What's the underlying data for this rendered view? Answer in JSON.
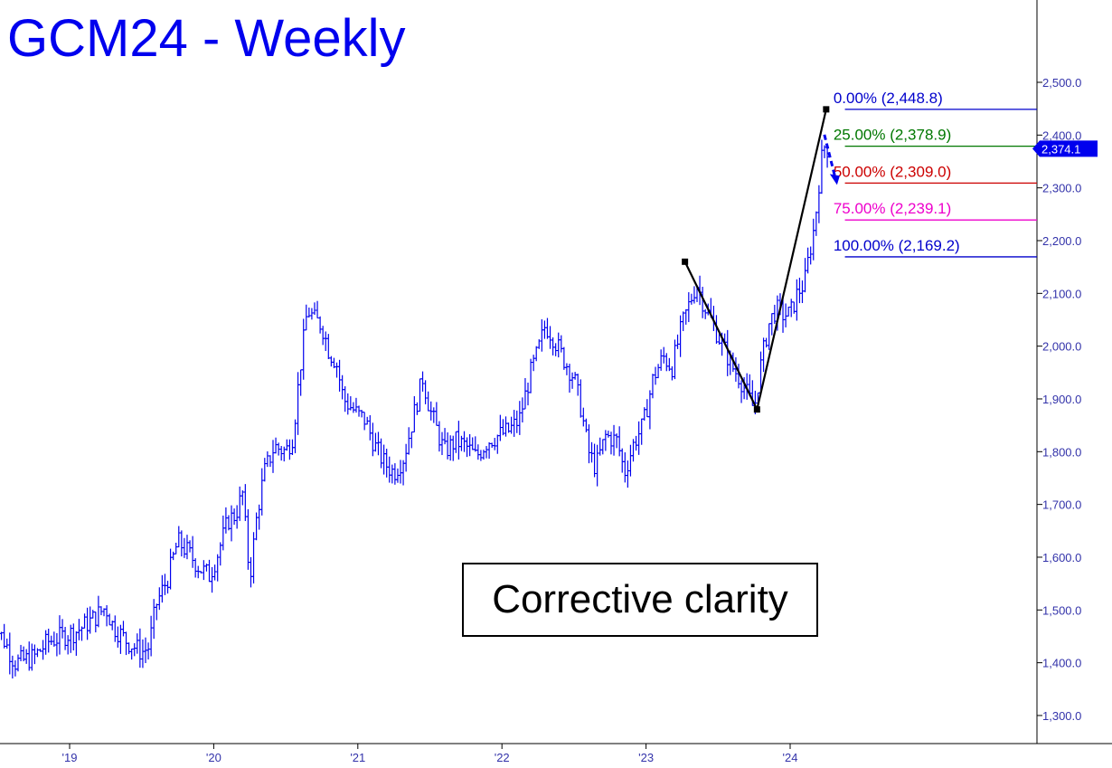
{
  "chart_data": {
    "type": "ohlc-weekly",
    "title": "GCM24 - Weekly",
    "annotation": "Corrective clarity",
    "current_price_label": "2,374.1",
    "current_price": 2374.1,
    "ylim": [
      1250,
      2600
    ],
    "y_ticks": [
      {
        "value": 1300,
        "label": "1,300.0"
      },
      {
        "value": 1400,
        "label": "1,400.0"
      },
      {
        "value": 1500,
        "label": "1,500.0"
      },
      {
        "value": 1600,
        "label": "1,600.0"
      },
      {
        "value": 1700,
        "label": "1,700.0"
      },
      {
        "value": 1800,
        "label": "1,800.0"
      },
      {
        "value": 1900,
        "label": "1,900.0"
      },
      {
        "value": 2000,
        "label": "2,000.0"
      },
      {
        "value": 2100,
        "label": "2,100.0"
      },
      {
        "value": 2200,
        "label": "2,200.0"
      },
      {
        "value": 2300,
        "label": "2,300.0"
      },
      {
        "value": 2400,
        "label": "2,400.0"
      },
      {
        "value": 2500,
        "label": "2,500.0"
      }
    ],
    "x_ticks": [
      {
        "year": 2019,
        "label": "'19"
      },
      {
        "year": 2020,
        "label": "'20"
      },
      {
        "year": 2021,
        "label": "'21"
      },
      {
        "year": 2022,
        "label": "'22"
      },
      {
        "year": 2023,
        "label": "'23"
      },
      {
        "year": 2024,
        "label": "'24"
      }
    ],
    "price_path": [
      [
        2018.45,
        1485
      ],
      [
        2018.55,
        1440
      ],
      [
        2018.62,
        1400
      ],
      [
        2018.75,
        1410
      ],
      [
        2018.85,
        1440
      ],
      [
        2018.95,
        1450
      ],
      [
        2019.05,
        1460
      ],
      [
        2019.15,
        1480
      ],
      [
        2019.25,
        1505
      ],
      [
        2019.3,
        1470
      ],
      [
        2019.4,
        1440
      ],
      [
        2019.5,
        1420
      ],
      [
        2019.55,
        1430
      ],
      [
        2019.6,
        1510
      ],
      [
        2019.68,
        1560
      ],
      [
        2019.75,
        1630
      ],
      [
        2019.82,
        1610
      ],
      [
        2019.9,
        1580
      ],
      [
        2019.97,
        1565
      ],
      [
        2020.02,
        1600
      ],
      [
        2020.1,
        1670
      ],
      [
        2020.15,
        1680
      ],
      [
        2020.2,
        1720
      ],
      [
        2020.25,
        1560
      ],
      [
        2020.3,
        1680
      ],
      [
        2020.35,
        1760
      ],
      [
        2020.42,
        1810
      ],
      [
        2020.5,
        1800
      ],
      [
        2020.55,
        1830
      ],
      [
        2020.6,
        1960
      ],
      [
        2020.65,
        2070
      ],
      [
        2020.7,
        2050
      ],
      [
        2020.75,
        2040
      ],
      [
        2020.8,
        1990
      ],
      [
        2020.85,
        1970
      ],
      [
        2020.9,
        1900
      ],
      [
        2021.0,
        1870
      ],
      [
        2021.05,
        1860
      ],
      [
        2021.12,
        1810
      ],
      [
        2021.18,
        1780
      ],
      [
        2021.25,
        1760
      ],
      [
        2021.32,
        1790
      ],
      [
        2021.38,
        1860
      ],
      [
        2021.45,
        1940
      ],
      [
        2021.5,
        1880
      ],
      [
        2021.55,
        1840
      ],
      [
        2021.6,
        1800
      ],
      [
        2021.68,
        1820
      ],
      [
        2021.75,
        1810
      ],
      [
        2021.82,
        1790
      ],
      [
        2021.9,
        1820
      ],
      [
        2021.97,
        1830
      ],
      [
        2022.05,
        1840
      ],
      [
        2022.12,
        1860
      ],
      [
        2022.2,
        1950
      ],
      [
        2022.25,
        1990
      ],
      [
        2022.3,
        2040
      ],
      [
        2022.35,
        2020
      ],
      [
        2022.42,
        1980
      ],
      [
        2022.5,
        1940
      ],
      [
        2022.55,
        1880
      ],
      [
        2022.6,
        1800
      ],
      [
        2022.65,
        1770
      ],
      [
        2022.72,
        1830
      ],
      [
        2022.8,
        1820
      ],
      [
        2022.85,
        1760
      ],
      [
        2022.92,
        1820
      ],
      [
        2022.98,
        1850
      ],
      [
        2023.05,
        1940
      ],
      [
        2023.12,
        1980
      ],
      [
        2023.18,
        1960
      ],
      [
        2023.25,
        2040
      ],
      [
        2023.3,
        2080
      ],
      [
        2023.35,
        2120
      ],
      [
        2023.4,
        2080
      ],
      [
        2023.45,
        2050
      ],
      [
        2023.5,
        2020
      ],
      [
        2023.55,
        1990
      ],
      [
        2023.6,
        1960
      ],
      [
        2023.65,
        1940
      ],
      [
        2023.7,
        1910
      ],
      [
        2023.75,
        1880
      ],
      [
        2023.8,
        1970
      ],
      [
        2023.85,
        2040
      ],
      [
        2023.9,
        2070
      ],
      [
        2023.95,
        2060
      ],
      [
        2024.0,
        2060
      ],
      [
        2024.05,
        2100
      ],
      [
        2024.1,
        2120
      ],
      [
        2024.13,
        2170
      ],
      [
        2024.17,
        2230
      ],
      [
        2024.2,
        2310
      ],
      [
        2024.23,
        2380
      ],
      [
        2024.26,
        2374
      ]
    ],
    "pattern": [
      {
        "date": 2023.27,
        "price": 2160
      },
      {
        "date": 2023.77,
        "price": 1880
      },
      {
        "date": 2024.25,
        "price": 2448.8
      }
    ],
    "fib_levels": [
      {
        "label": "0.00% (2,448.8)",
        "price": 2448.8,
        "color": "#0000cc"
      },
      {
        "label": "25.00% (2,378.9)",
        "price": 2378.9,
        "color": "#007700"
      },
      {
        "label": "50.00% (2,309.0)",
        "price": 2309.0,
        "color": "#cc0000"
      },
      {
        "label": "75.00% (2,239.1)",
        "price": 2239.1,
        "color": "#ee00cc"
      },
      {
        "label": "100.00% (2,169.2)",
        "price": 2169.2,
        "color": "#0000cc"
      }
    ],
    "colors": {
      "bars": "#0000ee",
      "title": "#0000ee",
      "axis_text": "#3333aa",
      "pattern_line": "#000000",
      "price_tag": "#0000ee"
    }
  }
}
